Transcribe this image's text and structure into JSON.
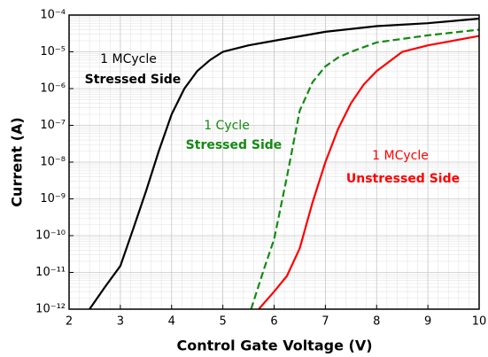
{
  "chart_data": {
    "type": "line",
    "log_y": true,
    "grid": true,
    "xlabel": "Control Gate Voltage (V)",
    "ylabel": "Current (A)",
    "xlim": [
      2,
      10
    ],
    "xticks": [
      2,
      3,
      4,
      5,
      6,
      7,
      8,
      9,
      10
    ],
    "ylim": [
      1e-12,
      0.0001
    ],
    "yticks": [
      {
        "value": 1e-12,
        "label": "10⁻¹²"
      },
      {
        "value": 1e-11,
        "label": "10⁻¹¹"
      },
      {
        "value": 1e-10,
        "label": "10⁻¹⁰"
      },
      {
        "value": 1e-09,
        "label": "10⁻⁹"
      },
      {
        "value": 1e-08,
        "label": "10⁻⁸"
      },
      {
        "value": 1e-07,
        "label": "10⁻⁷"
      },
      {
        "value": 1e-06,
        "label": "10⁻⁶"
      },
      {
        "value": 1e-05,
        "label": "10⁻⁵"
      },
      {
        "value": 0.0001,
        "label": "10⁻⁴"
      }
    ],
    "series": [
      {
        "name": "1 MCycle Stressed Side",
        "color": "#000000",
        "linestyle": "solid",
        "x": [
          2.4,
          2.7,
          3,
          3.25,
          3.5,
          3.75,
          4,
          4.25,
          4.5,
          4.75,
          5,
          5.5,
          6,
          7,
          8,
          9,
          10
        ],
        "values": [
          1e-12,
          4e-12,
          1.5e-11,
          1.5e-10,
          1.6e-09,
          2e-08,
          2e-07,
          1e-06,
          3e-06,
          6e-06,
          1e-05,
          1.5e-05,
          2e-05,
          3.5e-05,
          5e-05,
          6e-05,
          8e-05
        ]
      },
      {
        "name": "1 Cycle Stressed Side",
        "color": "#138a13",
        "linestyle": "dashed",
        "x": [
          5.55,
          5.8,
          6,
          6.25,
          6.5,
          6.75,
          7,
          7.25,
          7.5,
          8,
          9,
          10
        ],
        "values": [
          1e-12,
          1.2e-11,
          8e-11,
          4e-09,
          2.5e-07,
          1.5e-06,
          4e-06,
          7e-06,
          1e-05,
          1.8e-05,
          2.8e-05,
          4e-05
        ]
      },
      {
        "name": "1 MCycle Unstressed Side",
        "color": "#ff0000",
        "linestyle": "solid",
        "x": [
          5.7,
          6,
          6.25,
          6.5,
          6.75,
          7,
          7.25,
          7.5,
          7.75,
          8,
          8.5,
          9,
          10
        ],
        "values": [
          1e-12,
          3e-12,
          8e-12,
          4.5e-11,
          8e-10,
          1e-08,
          8e-08,
          4e-07,
          1.3e-06,
          3e-06,
          1e-05,
          1.5e-05,
          2.7e-05
        ]
      }
    ],
    "annotations": [
      {
        "text": "1 MCycle",
        "color": "#000000"
      },
      {
        "text": "Stressed Side",
        "color": "#000000"
      },
      {
        "text": "1 Cycle",
        "color": "#138a13"
      },
      {
        "text": "Stressed Side",
        "color": "#138a13"
      },
      {
        "text": "1 MCycle",
        "color": "#ff0000"
      },
      {
        "text": "Unstressed Side",
        "color": "#ff0000"
      }
    ]
  }
}
